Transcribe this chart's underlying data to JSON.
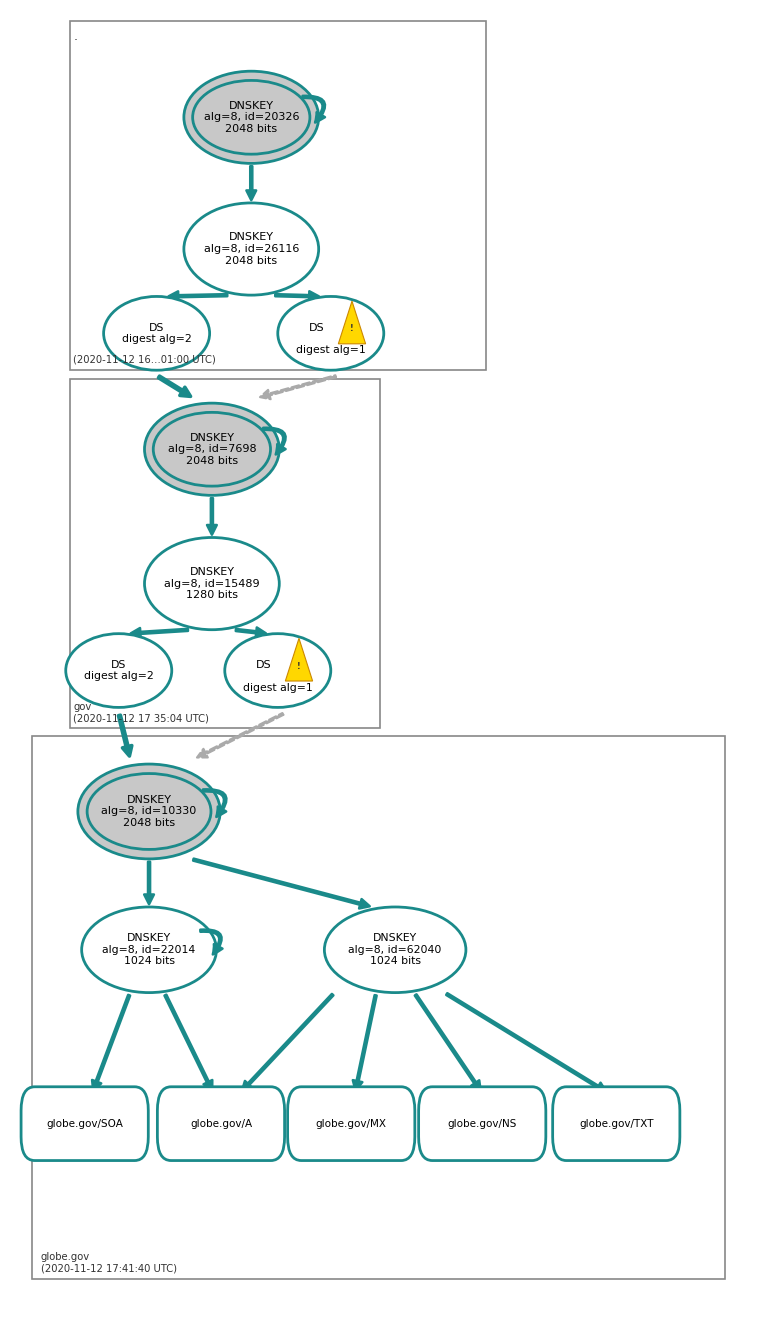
{
  "teal": "#1a8a8a",
  "gray_fill": "#c8c8c8",
  "white_fill": "#ffffff",
  "arrow_color": "#1a8a8a",
  "dashed_color": "#aaaaaa",
  "section1_timestamp": "(2020-11-12 16…01:00 UTC)",
  "section2_label": "gov",
  "section2_timestamp": "(2020-11-12 17 35:04 UTC)",
  "section3_label": "globe.gov",
  "section3_timestamp": "(2020-11-12 17:41:40 UTC)",
  "rr_labels": [
    "globe.gov/SOA",
    "globe.gov/A",
    "globe.gov/MX",
    "globe.gov/NS",
    "globe.gov/TXT"
  ]
}
